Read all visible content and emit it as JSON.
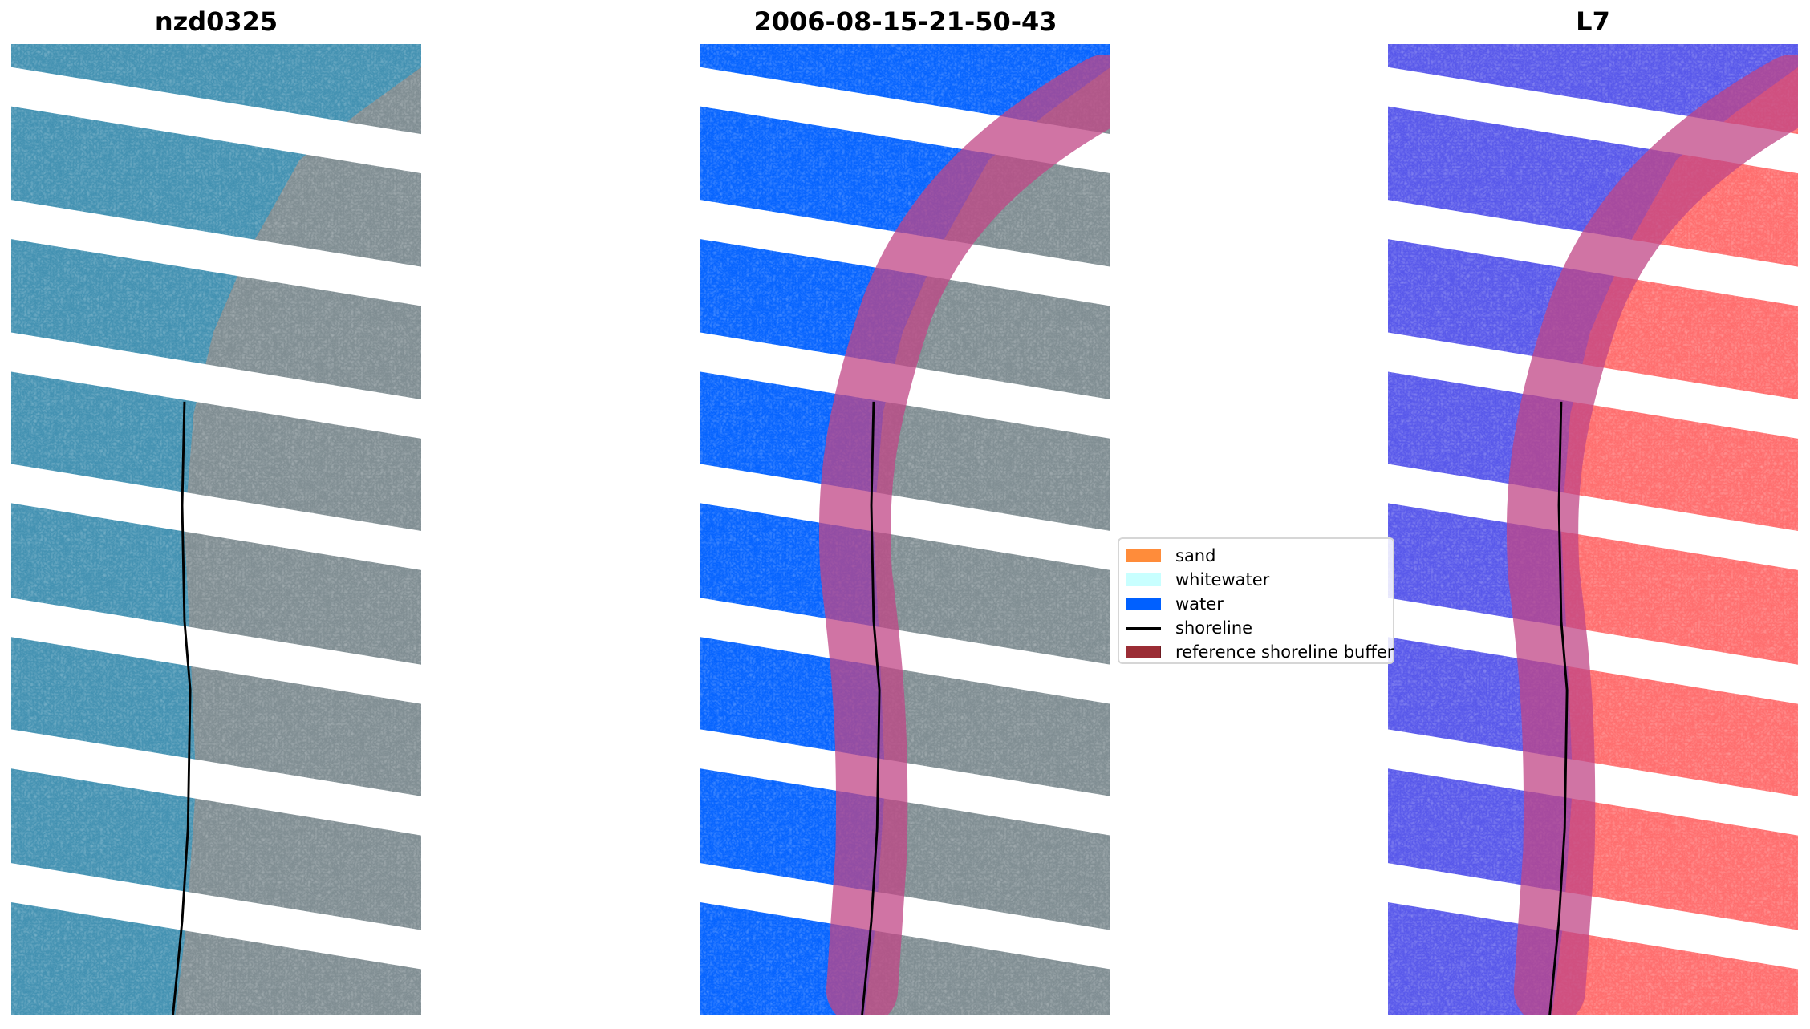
{
  "panels": [
    {
      "title": "nzd0325",
      "kind": "rgb"
    },
    {
      "title": "2006-08-15-21-50-43",
      "kind": "classified"
    },
    {
      "title": "L7",
      "kind": "index"
    }
  ],
  "legend": {
    "items": [
      {
        "label": "sand",
        "color": "#ff8c3a",
        "type": "patch"
      },
      {
        "label": "whitewater",
        "color": "#c8ffff",
        "type": "patch"
      },
      {
        "label": "water",
        "color": "#0060ff",
        "type": "patch"
      },
      {
        "label": "shoreline",
        "color": "#000000",
        "type": "line"
      },
      {
        "label": "reference shoreline buffer",
        "color": "#9b2d35",
        "type": "patch"
      }
    ]
  },
  "colors": {
    "ocean_rgb": "#3f8fb0",
    "land_rgb": "#7d8b90",
    "water_class": "#0060ff",
    "index_water": "#5454ea",
    "index_land": "#ff6a6a",
    "buffer_overlay": "#c04585"
  }
}
